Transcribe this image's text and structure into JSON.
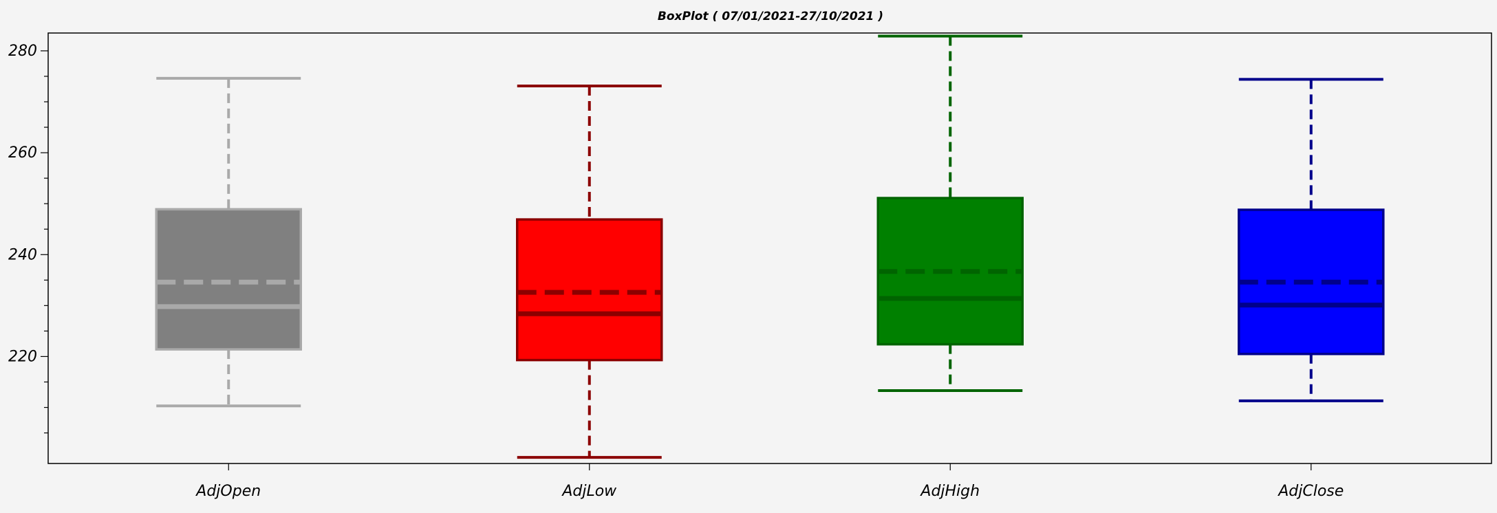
{
  "chart_data": {
    "type": "box",
    "title": "BoxPlot ( 07/01/2021-27/10/2021 )",
    "xlabel": "",
    "ylabel": "",
    "ylim": [
      199,
      283.5
    ],
    "yticks": [
      220,
      240,
      260,
      280
    ],
    "grid": false,
    "categories": [
      "AdjOpen",
      "AdjLow",
      "AdjHigh",
      "AdjClose"
    ],
    "series": [
      {
        "whisker_low": 210.3,
        "q1": 221.4,
        "median": 229.8,
        "mean": 234.6,
        "q3": 248.9,
        "whisker_high": 274.6,
        "fill": "#808080",
        "edge": "#a9a9a9"
      },
      {
        "whisker_low": 200.2,
        "q1": 219.3,
        "median": 228.4,
        "mean": 232.6,
        "q3": 246.9,
        "whisker_high": 273.1,
        "fill": "#ff0000",
        "edge": "#8b0000"
      },
      {
        "whisker_low": 213.3,
        "q1": 222.4,
        "median": 231.4,
        "mean": 236.7,
        "q3": 251.1,
        "whisker_high": 282.9,
        "fill": "#008000",
        "edge": "#006400"
      },
      {
        "whisker_low": 211.3,
        "q1": 220.5,
        "median": 230.1,
        "mean": 234.6,
        "q3": 248.8,
        "whisker_high": 274.4,
        "fill": "#0000ff",
        "edge": "#00008b"
      }
    ]
  }
}
